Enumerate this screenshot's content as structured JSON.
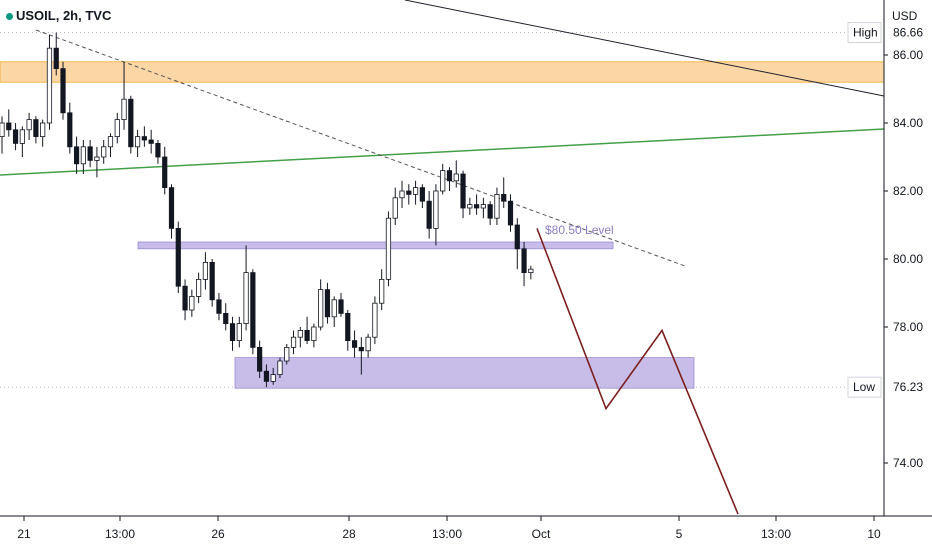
{
  "header": {
    "symbol": "USOIL, 2h, TVC"
  },
  "chart_data": {
    "type": "candlestick",
    "currency_label": "USD",
    "ylim": [
      72.5,
      87.5
    ],
    "y_ticks": [
      "86.00",
      "84.00",
      "82.00",
      "80.00",
      "78.00",
      "74.00"
    ],
    "x_ticks": [
      "21",
      "13:00",
      "26",
      "28",
      "13:00",
      "Oct",
      "5",
      "13:00",
      "10"
    ],
    "price_tags": [
      {
        "label": "High",
        "value": "86.66"
      },
      {
        "label": "Low",
        "value": "76.23"
      }
    ],
    "level_label": "$80.50 Level",
    "zones": [
      {
        "name": "supply-zone",
        "y_low": 85.2,
        "y_high": 85.8,
        "color": "#fbd7a6"
      },
      {
        "name": "level-zone",
        "y_low": 80.3,
        "y_high": 80.5,
        "color": "#c8bde8"
      },
      {
        "name": "demand-zone",
        "y_low": 76.2,
        "y_high": 77.1,
        "color": "#c8bde8"
      }
    ],
    "candles": [
      [
        83.6,
        84.2,
        83.1,
        84.0
      ],
      [
        84.0,
        84.4,
        83.6,
        83.8
      ],
      [
        83.8,
        84.0,
        83.2,
        83.4
      ],
      [
        83.4,
        83.9,
        83.0,
        83.8
      ],
      [
        83.8,
        84.3,
        83.5,
        84.1
      ],
      [
        84.1,
        84.2,
        83.4,
        83.6
      ],
      [
        83.6,
        84.1,
        83.3,
        84.0
      ],
      [
        84.0,
        86.6,
        83.8,
        86.2
      ],
      [
        86.2,
        86.66,
        85.4,
        85.6
      ],
      [
        85.6,
        85.8,
        84.1,
        84.3
      ],
      [
        84.3,
        84.6,
        83.1,
        83.3
      ],
      [
        83.3,
        83.6,
        82.5,
        82.8
      ],
      [
        82.8,
        83.5,
        82.5,
        83.3
      ],
      [
        83.3,
        83.5,
        82.7,
        82.9
      ],
      [
        82.9,
        83.3,
        82.4,
        83.0
      ],
      [
        83.0,
        83.5,
        82.8,
        83.3
      ],
      [
        83.3,
        83.7,
        83.0,
        83.6
      ],
      [
        83.6,
        84.3,
        83.4,
        84.1
      ],
      [
        84.1,
        85.8,
        83.8,
        84.7
      ],
      [
        84.7,
        84.8,
        83.1,
        83.3
      ],
      [
        83.3,
        83.8,
        83.0,
        83.6
      ],
      [
        83.6,
        83.9,
        83.3,
        83.5
      ],
      [
        83.5,
        83.8,
        83.1,
        83.4
      ],
      [
        83.4,
        83.5,
        82.8,
        83.0
      ],
      [
        83.0,
        83.3,
        81.9,
        82.1
      ],
      [
        82.1,
        82.2,
        80.6,
        80.9
      ],
      [
        80.9,
        81.1,
        79.0,
        79.2
      ],
      [
        79.2,
        79.4,
        78.2,
        78.5
      ],
      [
        78.5,
        79.1,
        78.3,
        78.9
      ],
      [
        78.9,
        79.6,
        78.7,
        79.4
      ],
      [
        79.4,
        80.2,
        79.1,
        79.9
      ],
      [
        79.9,
        80.0,
        78.6,
        78.8
      ],
      [
        78.8,
        79.0,
        78.2,
        78.4
      ],
      [
        78.4,
        78.7,
        77.9,
        78.1
      ],
      [
        78.1,
        78.3,
        77.3,
        77.6
      ],
      [
        77.6,
        78.3,
        77.4,
        78.1
      ],
      [
        78.1,
        80.4,
        77.9,
        79.6
      ],
      [
        79.6,
        79.7,
        77.2,
        77.4
      ],
      [
        77.4,
        77.6,
        76.5,
        76.7
      ],
      [
        76.7,
        76.9,
        76.23,
        76.4
      ],
      [
        76.4,
        76.8,
        76.3,
        76.6
      ],
      [
        76.6,
        77.1,
        76.5,
        77.0
      ],
      [
        77.0,
        77.5,
        76.9,
        77.4
      ],
      [
        77.4,
        77.9,
        77.2,
        77.7
      ],
      [
        77.7,
        78.0,
        77.4,
        77.9
      ],
      [
        77.9,
        78.3,
        77.5,
        77.6
      ],
      [
        77.6,
        78.1,
        77.4,
        78.0
      ],
      [
        78.0,
        79.4,
        77.9,
        79.1
      ],
      [
        79.1,
        79.3,
        78.1,
        78.3
      ],
      [
        78.3,
        78.9,
        78.0,
        78.8
      ],
      [
        78.8,
        79.0,
        78.3,
        78.4
      ],
      [
        78.4,
        78.5,
        77.3,
        77.6
      ],
      [
        77.6,
        77.9,
        77.1,
        77.4
      ],
      [
        77.4,
        77.7,
        76.6,
        77.3
      ],
      [
        77.3,
        77.8,
        77.1,
        77.7
      ],
      [
        77.7,
        78.9,
        77.5,
        78.7
      ],
      [
        78.7,
        79.7,
        78.5,
        79.4
      ],
      [
        79.4,
        81.4,
        79.2,
        81.2
      ],
      [
        81.2,
        82.1,
        81.0,
        81.8
      ],
      [
        81.8,
        82.3,
        81.5,
        82.0
      ],
      [
        82.0,
        82.2,
        81.6,
        81.9
      ],
      [
        81.9,
        82.3,
        81.6,
        82.1
      ],
      [
        82.1,
        82.2,
        81.5,
        81.7
      ],
      [
        81.7,
        82.0,
        80.6,
        80.9
      ],
      [
        80.9,
        82.2,
        80.4,
        82.0
      ],
      [
        82.0,
        82.8,
        81.9,
        82.6
      ],
      [
        82.6,
        82.7,
        82.0,
        82.3
      ],
      [
        82.3,
        82.9,
        82.1,
        82.5
      ],
      [
        82.5,
        82.6,
        81.2,
        81.5
      ],
      [
        81.5,
        81.8,
        81.3,
        81.6
      ],
      [
        81.6,
        81.9,
        81.3,
        81.5
      ],
      [
        81.5,
        81.8,
        81.2,
        81.6
      ],
      [
        81.6,
        81.7,
        81.0,
        81.2
      ],
      [
        81.2,
        82.1,
        81.0,
        81.9
      ],
      [
        81.9,
        82.4,
        81.5,
        81.7
      ],
      [
        81.7,
        81.9,
        80.8,
        81.0
      ],
      [
        81.0,
        81.2,
        79.7,
        80.3
      ],
      [
        80.3,
        80.5,
        79.2,
        79.6
      ],
      [
        79.6,
        79.8,
        79.4,
        79.7
      ]
    ],
    "projection": [
      [
        80.9,
        0
      ],
      [
        75.6,
        1
      ],
      [
        77.9,
        2
      ],
      [
        72.5,
        3
      ]
    ]
  }
}
